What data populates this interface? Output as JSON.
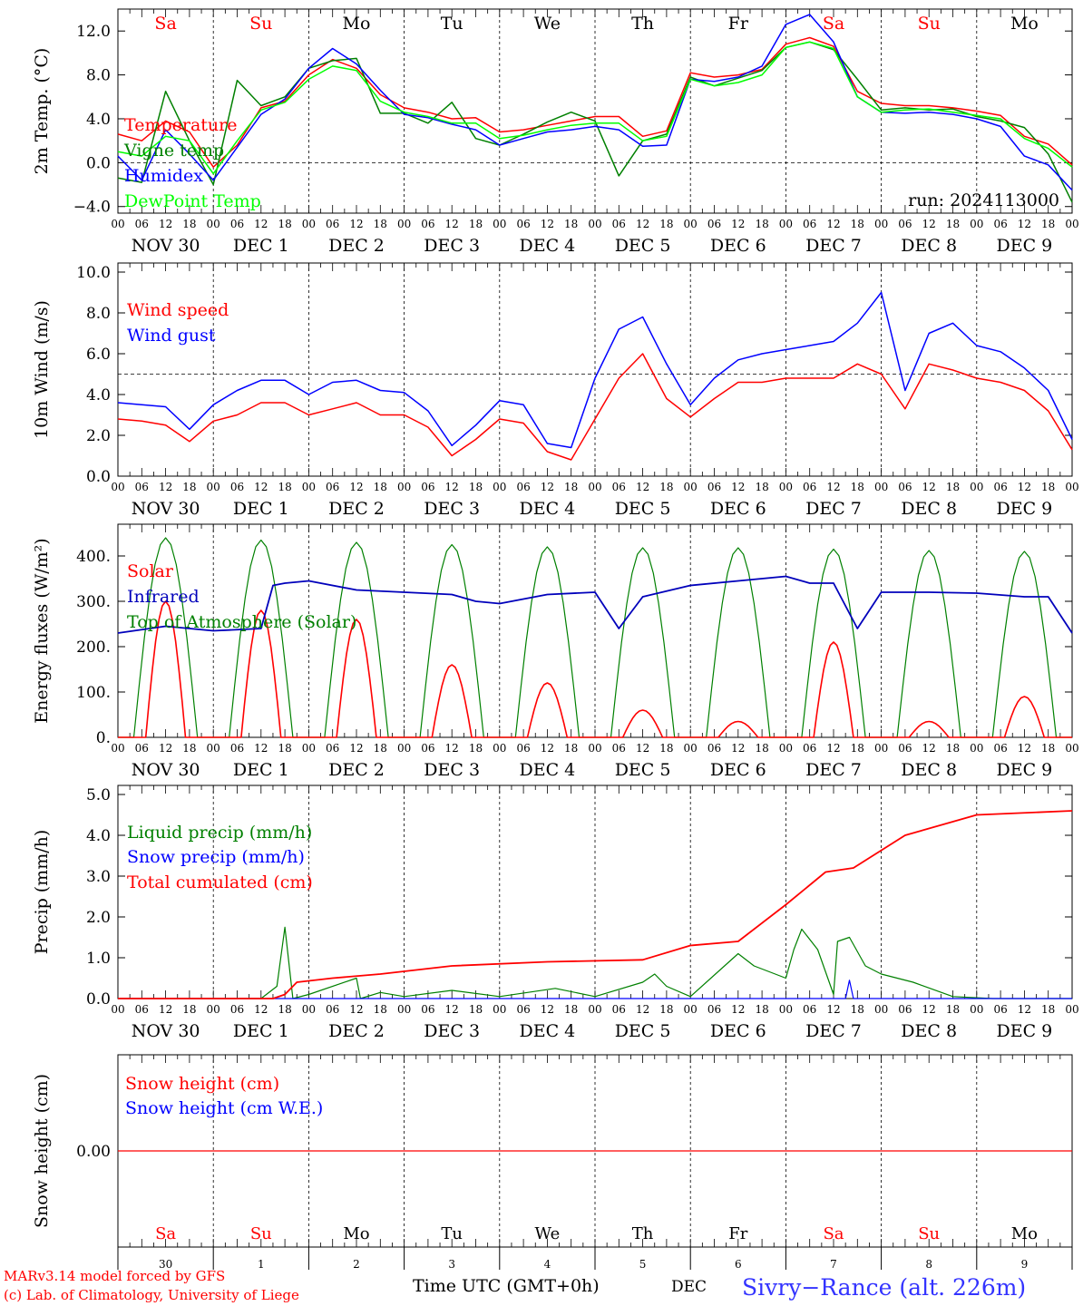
{
  "chart_data": [
    {
      "type": "line",
      "ylabel": "2m Temp. (°C)",
      "ylim": [
        -4,
        14
      ],
      "yticks": [
        12.0,
        8.0,
        4.0,
        0.0,
        -4.0
      ],
      "ytick_labels": [
        "12.0",
        "8.0",
        "4.0",
        "0.0",
        "−4.0"
      ],
      "ref_line": 0,
      "annotation": "run: 2024113000",
      "x_hours": [
        0,
        6,
        12,
        18,
        24,
        30,
        36,
        42,
        48,
        54,
        60,
        66,
        72,
        78,
        84,
        90,
        96,
        102,
        108,
        114,
        120,
        126,
        132,
        138,
        144,
        150,
        156,
        162,
        168,
        174,
        180,
        186,
        192,
        198,
        204,
        210,
        216,
        222,
        228,
        234,
        240
      ],
      "series": [
        {
          "name": "Temperature",
          "color": "#ff0000",
          "values": [
            2.6,
            2.0,
            3.8,
            2.8,
            -0.4,
            1.6,
            5.0,
            5.6,
            8.0,
            9.4,
            8.6,
            6.2,
            5.0,
            4.6,
            4.0,
            4.1,
            2.8,
            3.0,
            3.4,
            3.8,
            4.2,
            4.2,
            2.4,
            2.9,
            8.2,
            7.8,
            8.0,
            8.5,
            10.8,
            11.4,
            10.6,
            6.5,
            5.4,
            5.2,
            5.2,
            5.0,
            4.7,
            4.3,
            2.4,
            1.7,
            -0.2
          ]
        },
        {
          "name": "Vigne temp",
          "color": "#008000",
          "values": [
            -1.4,
            -1.8,
            6.5,
            2.0,
            -2.0,
            7.5,
            5.2,
            6.0,
            8.6,
            9.3,
            9.5,
            4.5,
            4.5,
            3.6,
            5.5,
            2.2,
            1.6,
            2.6,
            3.7,
            4.6,
            3.8,
            -1.2,
            2.0,
            2.6,
            7.8,
            7.0,
            7.7,
            8.4,
            10.5,
            11.0,
            10.3,
            7.6,
            4.8,
            5.0,
            4.8,
            4.9,
            4.2,
            3.8,
            3.2,
            0.8,
            -3.6
          ]
        },
        {
          "name": "Humidex",
          "color": "#0000ff",
          "values": [
            0.6,
            -1.6,
            3.0,
            0.8,
            -1.6,
            1.4,
            4.4,
            5.8,
            8.6,
            10.4,
            9.0,
            6.6,
            4.4,
            4.1,
            3.5,
            3.0,
            1.6,
            2.2,
            2.8,
            3.0,
            3.3,
            3.0,
            1.5,
            1.6,
            7.6,
            7.4,
            7.8,
            8.8,
            12.6,
            13.5,
            11.0,
            6.0,
            4.6,
            4.5,
            4.6,
            4.4,
            4.0,
            3.3,
            0.6,
            -0.2,
            -2.5
          ]
        },
        {
          "name": "DewPoint Temp",
          "color": "#00ff00",
          "values": [
            1.0,
            0.6,
            2.4,
            2.0,
            -1.0,
            2.0,
            4.8,
            5.5,
            7.6,
            8.8,
            8.4,
            5.6,
            4.6,
            4.2,
            3.6,
            3.6,
            2.2,
            2.5,
            3.0,
            3.4,
            3.6,
            3.6,
            2.0,
            2.4,
            7.6,
            7.0,
            7.3,
            8.0,
            10.5,
            11.0,
            10.4,
            6.0,
            4.6,
            4.8,
            4.9,
            4.6,
            4.3,
            4.0,
            2.2,
            1.3,
            -0.4
          ]
        }
      ]
    },
    {
      "type": "line",
      "ylabel": "10m Wind (m/s)",
      "ylim": [
        0,
        10
      ],
      "yticks": [
        10.0,
        8.0,
        6.0,
        4.0,
        2.0,
        0.0
      ],
      "ytick_labels": [
        "10.0",
        "8.0",
        "6.0",
        "4.0",
        "2.0",
        "0.0"
      ],
      "ref_line": 5,
      "x_hours": [
        0,
        6,
        12,
        18,
        24,
        30,
        36,
        42,
        48,
        54,
        60,
        66,
        72,
        78,
        84,
        90,
        96,
        102,
        108,
        114,
        120,
        126,
        132,
        138,
        144,
        150,
        156,
        162,
        168,
        174,
        180,
        186,
        192,
        198,
        204,
        210,
        216,
        222,
        228,
        234,
        240
      ],
      "series": [
        {
          "name": "Wind speed",
          "color": "#ff0000",
          "values": [
            2.8,
            2.7,
            2.5,
            1.7,
            2.7,
            3.0,
            3.6,
            3.6,
            3.0,
            3.3,
            3.6,
            3.0,
            3.0,
            2.4,
            1.0,
            1.8,
            2.8,
            2.6,
            1.2,
            0.8,
            2.8,
            4.8,
            6.0,
            3.8,
            2.9,
            3.8,
            4.6,
            4.6,
            4.8,
            4.8,
            4.8,
            5.5,
            5.0,
            3.3,
            5.5,
            5.2,
            4.8,
            4.6,
            4.2,
            3.2,
            1.3
          ]
        },
        {
          "name": "Wind gust",
          "color": "#0000ff",
          "values": [
            3.6,
            3.5,
            3.4,
            2.3,
            3.5,
            4.2,
            4.7,
            4.7,
            4.0,
            4.6,
            4.7,
            4.2,
            4.1,
            3.2,
            1.5,
            2.5,
            3.7,
            3.5,
            1.6,
            1.4,
            4.8,
            7.2,
            7.8,
            5.5,
            3.5,
            4.8,
            5.7,
            6.0,
            6.2,
            6.4,
            6.6,
            7.5,
            9.0,
            4.2,
            7.0,
            7.5,
            6.4,
            6.1,
            5.3,
            4.2,
            1.8
          ]
        }
      ]
    },
    {
      "type": "line",
      "ylabel": "Energy fluxes (W/m²)",
      "ylim": [
        0,
        450
      ],
      "yticks": [
        400,
        300,
        200,
        100,
        0
      ],
      "ytick_labels": [
        "400.",
        "300.",
        "200.",
        "100.",
        "0."
      ],
      "series": [
        {
          "name": "Solar",
          "color": "#ff0000",
          "daily_peaks": [
            300,
            280,
            260,
            160,
            120,
            60,
            35,
            210,
            35,
            90
          ]
        },
        {
          "name": "Infrared",
          "color": "#0000bb",
          "x_hours": [
            0,
            12,
            24,
            36,
            39,
            42,
            48,
            60,
            72,
            84,
            90,
            96,
            108,
            120,
            126,
            132,
            144,
            156,
            168,
            174,
            180,
            186,
            192,
            204,
            216,
            228,
            234,
            240
          ],
          "values": [
            230,
            245,
            235,
            240,
            335,
            340,
            345,
            325,
            320,
            315,
            300,
            295,
            315,
            320,
            240,
            310,
            335,
            345,
            355,
            340,
            340,
            240,
            320,
            320,
            318,
            310,
            310,
            230
          ]
        },
        {
          "name": "Top of Atmosphere (Solar)",
          "color": "#008000",
          "daily_peaks": [
            440,
            435,
            430,
            425,
            420,
            418,
            418,
            415,
            412,
            410
          ]
        }
      ]
    },
    {
      "type": "line",
      "ylabel": "Precip (mm/h)",
      "ylim": [
        0,
        5
      ],
      "yticks": [
        5.0,
        4.0,
        3.0,
        2.0,
        1.0,
        0.0
      ],
      "ytick_labels": [
        "5.0",
        "4.0",
        "3.0",
        "2.0",
        "1.0",
        "0.0"
      ],
      "series": [
        {
          "name": "Liquid precip (mm/h)",
          "color": "#008000",
          "x_hours": [
            0,
            36,
            40,
            42,
            44,
            48,
            60,
            61,
            66,
            72,
            84,
            96,
            110,
            120,
            132,
            135,
            138,
            144,
            156,
            160,
            168,
            170,
            172,
            176,
            180,
            181,
            184,
            188,
            192,
            200,
            210,
            220,
            240
          ],
          "values": [
            0,
            0,
            0.3,
            1.75,
            0,
            0.1,
            0.5,
            0,
            0.15,
            0.05,
            0.2,
            0.05,
            0.25,
            0.05,
            0.4,
            0.6,
            0.3,
            0.05,
            1.1,
            0.8,
            0.5,
            1.2,
            1.7,
            1.2,
            0.1,
            1.4,
            1.5,
            0.8,
            0.6,
            0.4,
            0.05,
            0,
            0
          ]
        },
        {
          "name": "Snow precip (mm/h)",
          "color": "#0000ff",
          "x_hours": [
            0,
            183,
            184,
            185,
            240
          ],
          "values": [
            0,
            0,
            0.45,
            0,
            0
          ]
        },
        {
          "name": "Total cumulated (cm)",
          "color": "#ff0000",
          "x_hours": [
            0,
            39,
            42,
            45,
            54,
            66,
            84,
            108,
            132,
            144,
            156,
            168,
            178,
            185,
            198,
            216,
            240
          ],
          "values": [
            0,
            0,
            0.1,
            0.4,
            0.5,
            0.6,
            0.8,
            0.9,
            0.95,
            1.3,
            1.4,
            2.3,
            3.1,
            3.2,
            4.0,
            4.5,
            4.6
          ]
        }
      ]
    },
    {
      "type": "line",
      "ylabel": "Snow height (cm)",
      "yticks": [
        0.0
      ],
      "ytick_labels": [
        "0.00"
      ],
      "series": [
        {
          "name": "Snow height (cm)",
          "color": "#ff0000",
          "values": [
            0,
            0
          ]
        },
        {
          "name": "Snow height (cm W.E.)",
          "color": "#0000ff",
          "values": [
            0,
            0
          ]
        }
      ]
    }
  ],
  "x_axis": {
    "hour_labels": [
      "00",
      "06",
      "12",
      "18"
    ],
    "final_hour_label": "00",
    "date_labels": [
      "NOV 30",
      "DEC  1",
      "DEC  2",
      "DEC  3",
      "DEC  4",
      "DEC  5",
      "DEC  6",
      "DEC  7",
      "DEC  8",
      "DEC  9"
    ],
    "days": [
      {
        "abbr": "Sa",
        "num": "30",
        "color": "#ff0000"
      },
      {
        "abbr": "Su",
        "num": "1",
        "color": "#ff0000"
      },
      {
        "abbr": "Mo",
        "num": "2",
        "color": "#000000"
      },
      {
        "abbr": "Tu",
        "num": "3",
        "color": "#000000"
      },
      {
        "abbr": "We",
        "num": "4",
        "color": "#000000"
      },
      {
        "abbr": "Th",
        "num": "5",
        "color": "#000000"
      },
      {
        "abbr": "Fr",
        "num": "6",
        "color": "#000000"
      },
      {
        "abbr": "Sa",
        "num": "7",
        "color": "#ff0000"
      },
      {
        "abbr": "Su",
        "num": "8",
        "color": "#ff0000"
      },
      {
        "abbr": "Mo",
        "num": "9",
        "color": "#000000"
      }
    ]
  },
  "footer": {
    "model_line1": "MARv3.14 model forced by GFS",
    "model_line2": "(c) Lab. of Climatology, University of Liege",
    "time_label": "Time UTC (GMT+0h)",
    "month_label": "DEC",
    "station": "Sivry−Rance (alt. 226m)"
  }
}
